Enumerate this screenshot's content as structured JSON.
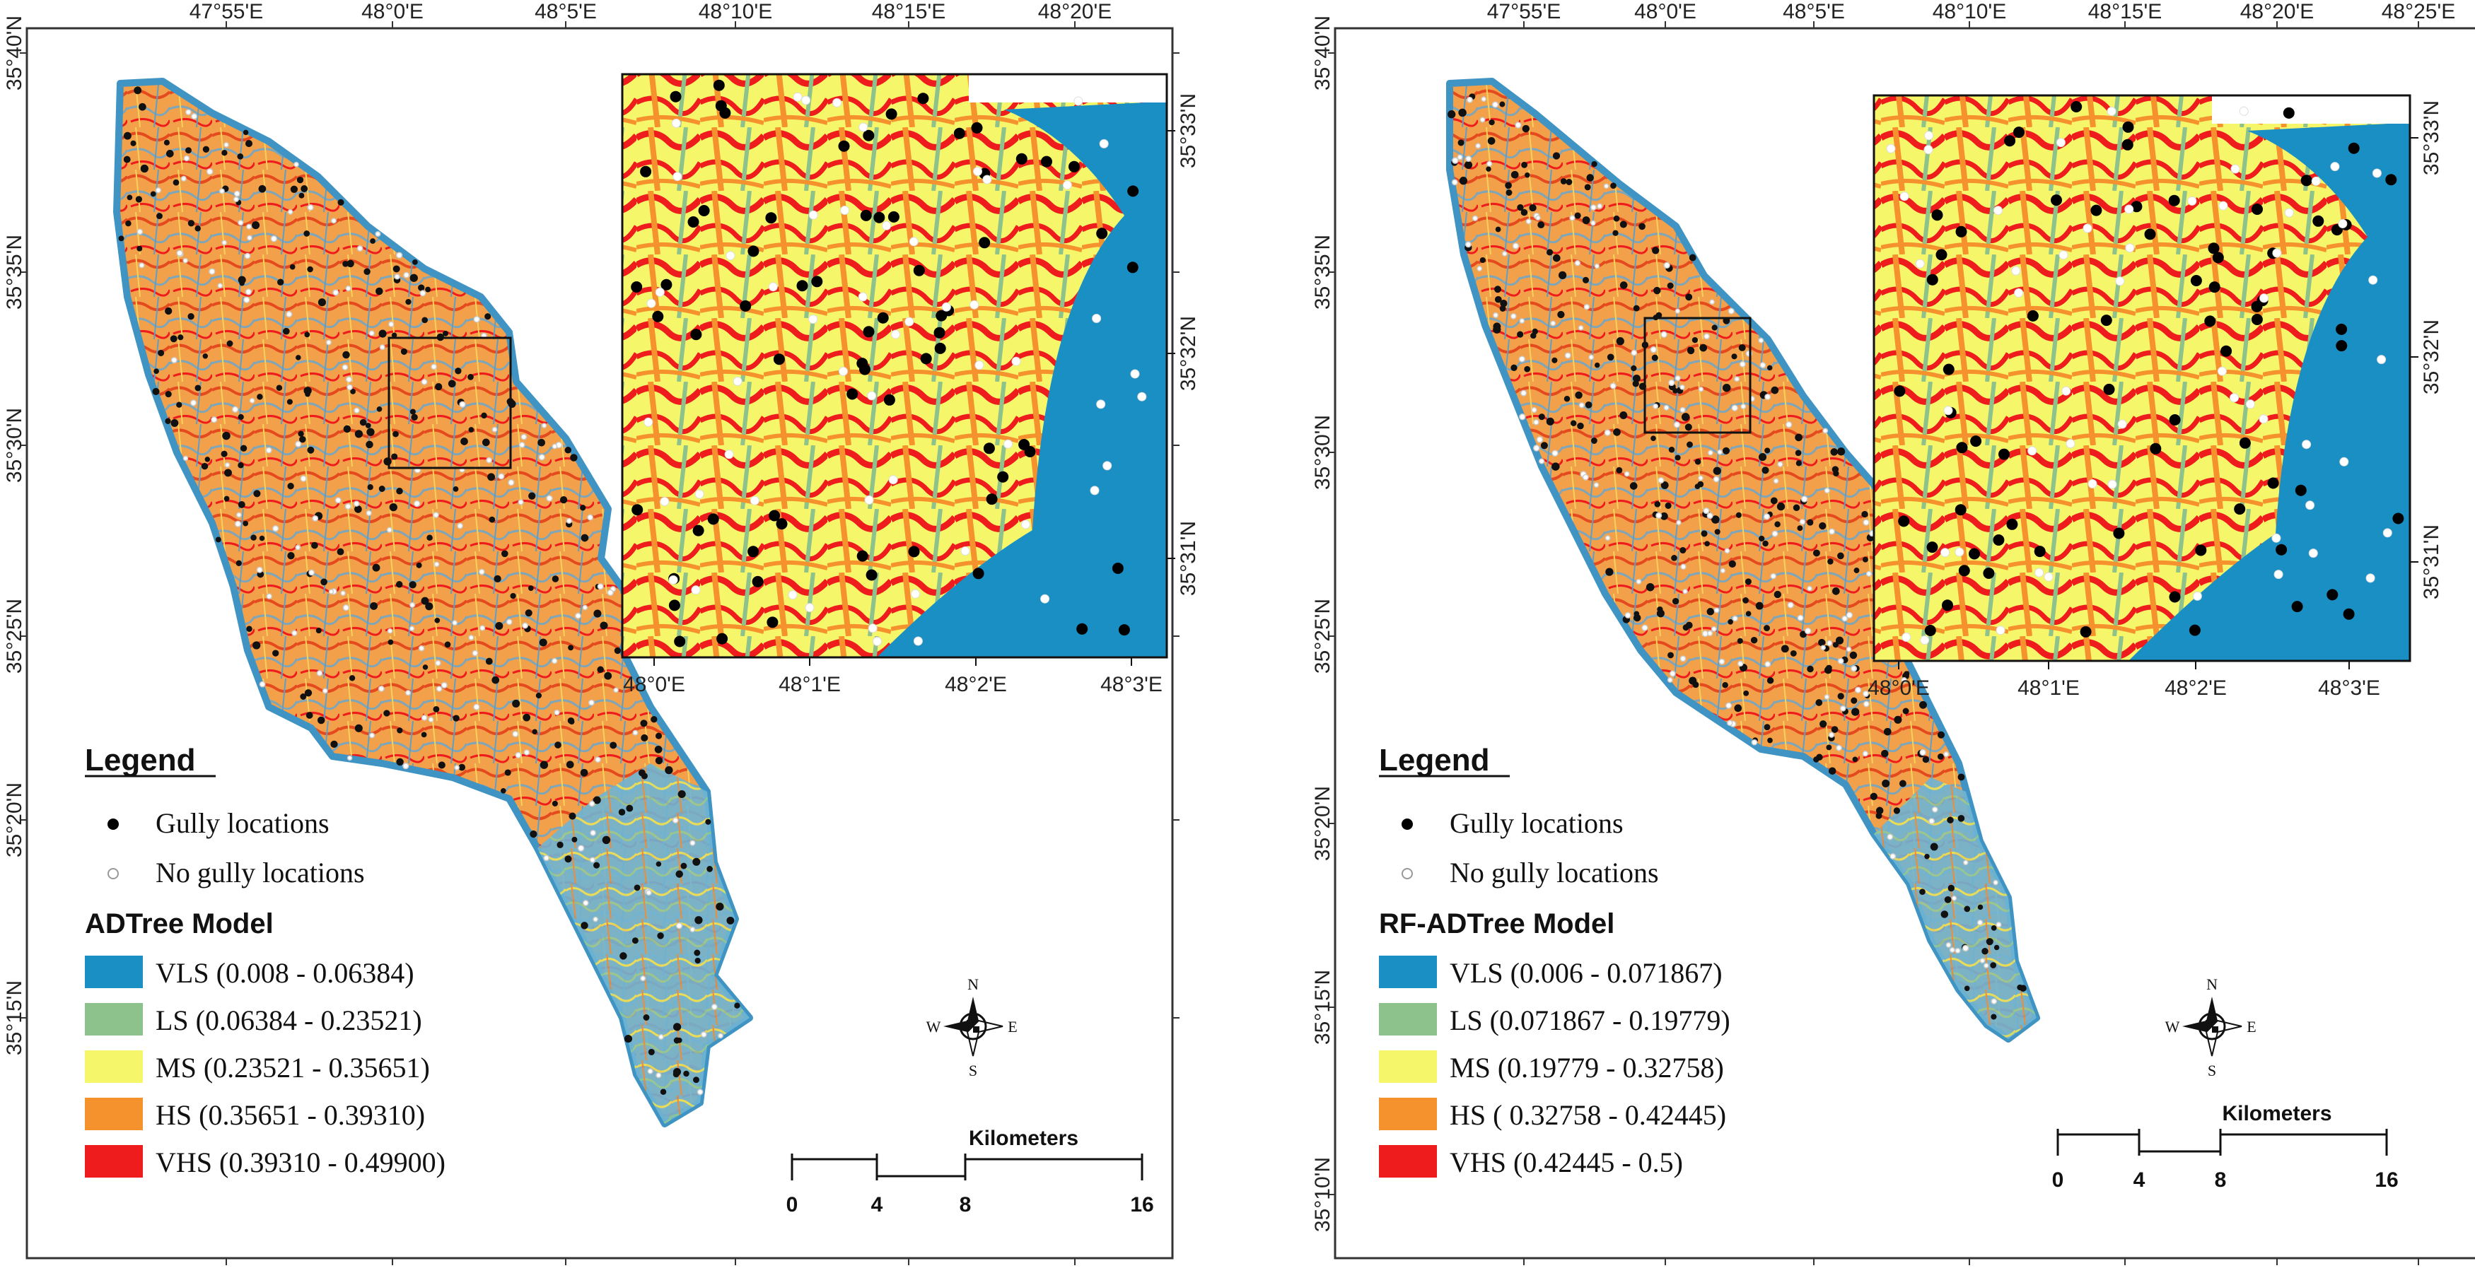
{
  "maps": [
    {
      "id": "left",
      "top_ticks": [
        "47°55'E",
        "48°0'E",
        "48°5'E",
        "48°10'E",
        "48°15'E",
        "48°20'E"
      ],
      "left_ticks": [
        "35°40'N",
        "35°35'N",
        "35°30'N",
        "35°25'N",
        "35°20'N",
        "35°15'N"
      ],
      "inset_bottom_ticks": [
        "48°0'E",
        "48°1'E",
        "48°2'E",
        "48°3'E"
      ],
      "inset_right_ticks": [
        "35°33'N",
        "35°32'N",
        "35°31'N"
      ],
      "legend_title": "Legend",
      "gully_label": "Gully locations",
      "nogully_label": "No gully locations",
      "model_title": "ADTree Model",
      "classes": [
        {
          "label": "VLS (0.008 - 0.06384)",
          "color": "#1a8fc4"
        },
        {
          "label": "LS (0.06384 - 0.23521)",
          "color": "#8dc28c"
        },
        {
          "label": "MS (0.23521 - 0.35651)",
          "color": "#f6f66a"
        },
        {
          "label": "HS (0.35651 - 0.39310)",
          "color": "#f5922e"
        },
        {
          "label": "VHS (0.39310 - 0.49900)",
          "color": "#ee1c1c"
        }
      ],
      "compass": {
        "n": "N",
        "s": "S",
        "e": "E",
        "w": "W"
      },
      "scale_title": "Kilometers",
      "scale_ticks": [
        "0",
        "4",
        "8",
        "16"
      ]
    },
    {
      "id": "right",
      "top_ticks": [
        "47°55'E",
        "48°0'E",
        "48°5'E",
        "48°10'E",
        "48°15'E",
        "48°20'E",
        "48°25'E"
      ],
      "left_ticks": [
        "35°40'N",
        "35°35'N",
        "35°30'N",
        "35°25'N",
        "35°20'N",
        "35°15'N",
        "35°10'N"
      ],
      "inset_bottom_ticks": [
        "48°0'E",
        "48°1'E",
        "48°2'E",
        "48°3'E"
      ],
      "inset_right_ticks": [
        "35°33'N",
        "35°32'N",
        "35°31'N"
      ],
      "legend_title": "Legend",
      "gully_label": "Gully locations",
      "nogully_label": "No gully locations",
      "model_title": "RF-ADTree Model",
      "classes": [
        {
          "label": "VLS (0.006 - 0.071867)",
          "color": "#1a8fc4"
        },
        {
          "label": "LS (0.071867 - 0.19779)",
          "color": "#8dc28c"
        },
        {
          "label": "MS (0.19779 - 0.32758)",
          "color": "#f6f66a"
        },
        {
          "label": "HS ( 0.32758 - 0.42445)",
          "color": "#f5922e"
        },
        {
          "label": "VHS (0.42445 - 0.5)",
          "color": "#ee1c1c"
        }
      ],
      "compass": {
        "n": "N",
        "s": "S",
        "e": "E",
        "w": "W"
      },
      "scale_title": "Kilometers",
      "scale_ticks": [
        "0",
        "4",
        "8",
        "16"
      ]
    }
  ]
}
